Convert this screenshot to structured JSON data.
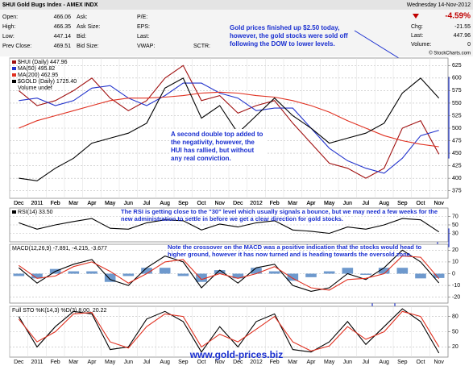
{
  "header": {
    "title": "$HUI Gold Bugs Index - AMEX INDX",
    "date": "Wednesday 14-Nov-2012",
    "change_pct": "-4.59%",
    "copyright": "© StockCharts.com",
    "rows": [
      [
        {
          "label": "Open:",
          "value": "466.06"
        },
        {
          "label": "Ask:"
        },
        {
          "label": "P/E:"
        }
      ],
      [
        {
          "label": "High:",
          "value": "466.35"
        },
        {
          "label": "Ask Size:"
        },
        {
          "label": "EPS:"
        }
      ],
      [
        {
          "label": "Low:",
          "value": "447.14"
        },
        {
          "label": "Bid:"
        },
        {
          "label": "Last:"
        }
      ],
      [
        {
          "label": "Prev Close:",
          "value": "469.51"
        },
        {
          "label": "Bid Size:"
        },
        {
          "label": "VWAP:"
        },
        {
          "label": "SCTR:"
        }
      ]
    ],
    "right": [
      {
        "label": "Chg:",
        "value": "-21.55"
      },
      {
        "label": "Last:",
        "value": "447.96"
      },
      {
        "label": "Volume:",
        "value": "0"
      }
    ],
    "website": "www.gold-prices.biz"
  },
  "chart_data": [
    {
      "type": "line",
      "categories": [
        "Dec",
        "2011",
        "Feb",
        "Mar",
        "Apr",
        "May",
        "Jun",
        "Jul",
        "Aug",
        "Sep",
        "Oct",
        "Nov",
        "Dec",
        "2012",
        "Feb",
        "Mar",
        "Apr",
        "May",
        "Jun",
        "Jul",
        "Aug",
        "Sep",
        "Oct",
        "Nov"
      ],
      "ylim": [
        360,
        640
      ],
      "yticks": [
        375,
        400,
        425,
        450,
        475,
        500,
        525,
        550,
        575,
        600,
        625
      ],
      "grid": true,
      "legend_note": "Volume undef",
      "series": [
        {
          "name": "$HUI (Daily) 447.96",
          "color": "#a01010",
          "values": [
            575,
            545,
            555,
            575,
            600,
            560,
            535,
            555,
            600,
            625,
            555,
            565,
            530,
            545,
            555,
            510,
            470,
            430,
            420,
            400,
            420,
            500,
            515,
            447.96
          ]
        },
        {
          "name": "MA(50) 495.82",
          "color": "#2233cc",
          "values": [
            555,
            560,
            545,
            555,
            580,
            585,
            560,
            545,
            565,
            590,
            590,
            570,
            560,
            535,
            540,
            540,
            500,
            460,
            435,
            420,
            410,
            440,
            485,
            495.82
          ]
        },
        {
          "name": "MA(200) 462.95",
          "color": "#e03020",
          "values": [
            500,
            515,
            525,
            535,
            545,
            555,
            560,
            560,
            562,
            565,
            570,
            572,
            570,
            565,
            562,
            555,
            545,
            532,
            515,
            500,
            485,
            475,
            468,
            462.95
          ]
        },
        {
          "name": "$GOLD (Daily) 1725.40",
          "color": "#000000",
          "values": [
            400,
            395,
            420,
            440,
            470,
            480,
            490,
            510,
            580,
            600,
            520,
            545,
            490,
            525,
            560,
            525,
            500,
            470,
            480,
            490,
            510,
            570,
            600,
            560
          ]
        }
      ],
      "annotations": [
        "Gold prices finished up $2.50 today, however, the gold stocks were sold off following the DOW to lower levels.",
        "A second double top added to the negativity, however, the HUI has rallied, but without any real conviction."
      ]
    },
    {
      "type": "line",
      "ylim": [
        10,
        90
      ],
      "yticks": [
        30,
        50,
        70
      ],
      "grid": true,
      "series": [
        {
          "name": "RSI(14) 33.50",
          "color": "#000000",
          "values": [
            55,
            40,
            50,
            58,
            65,
            42,
            40,
            55,
            62,
            60,
            38,
            52,
            45,
            55,
            60,
            38,
            35,
            30,
            45,
            40,
            50,
            65,
            62,
            33.5
          ]
        }
      ],
      "annotations": [
        "The RSI is getting close to the \"30\" level which usually signals a bounce, but we may need a few weeks for the new administration to settle in before we get a clear direction for gold stocks."
      ]
    },
    {
      "type": "line",
      "title": "MACD(12,26,9) -7.891, -4.215, -3.677",
      "ylim": [
        -25,
        25
      ],
      "yticks": [
        -20,
        -10,
        0,
        10,
        20
      ],
      "grid": true,
      "series": [
        {
          "color": "#4a7fc0",
          "kind": "bar",
          "values": [
            -2,
            -4,
            4,
            2,
            2,
            -7,
            -2,
            5,
            5,
            -2,
            -7,
            3,
            -4,
            5,
            2,
            -6,
            -3,
            2,
            5,
            -1,
            5,
            5,
            -4,
            -3.677
          ]
        },
        {
          "color": "#000000",
          "values": [
            5,
            -8,
            2,
            8,
            12,
            -5,
            -10,
            5,
            15,
            10,
            -12,
            3,
            -8,
            5,
            8,
            -10,
            -15,
            -12,
            0,
            -5,
            5,
            20,
            10,
            -7.891
          ]
        },
        {
          "color": "#e03020",
          "values": [
            7,
            -4,
            -2,
            6,
            10,
            2,
            -8,
            0,
            10,
            12,
            -5,
            0,
            -4,
            0,
            6,
            -4,
            -12,
            -14,
            -5,
            -4,
            0,
            15,
            14,
            -4.215
          ]
        }
      ],
      "annotations": [
        "Note the crossover on the MACD was a positive indication that the stocks would head to higher ground, however it has now turned and is heading towards the oversold zone."
      ]
    },
    {
      "type": "line",
      "title": "Full STO %K(14,3) %D(3) 8.00, 20.22",
      "categories": [
        "Dec",
        "2011",
        "Feb",
        "Mar",
        "Apr",
        "May",
        "Jun",
        "Jul",
        "Aug",
        "Sep",
        "Oct",
        "Nov",
        "Dec",
        "2012",
        "Feb",
        "Mar",
        "Apr",
        "May",
        "Jun",
        "Jul",
        "Aug",
        "Sep",
        "Oct",
        "Nov"
      ],
      "ylim": [
        0,
        100
      ],
      "yticks": [
        20,
        50,
        80
      ],
      "grid": true,
      "series": [
        {
          "color": "#000000",
          "values": [
            80,
            20,
            60,
            90,
            85,
            15,
            20,
            75,
            90,
            70,
            10,
            60,
            20,
            70,
            85,
            15,
            10,
            30,
            70,
            25,
            60,
            95,
            70,
            8
          ]
        },
        {
          "color": "#e03020",
          "values": [
            75,
            30,
            50,
            85,
            88,
            30,
            18,
            60,
            85,
            80,
            20,
            45,
            30,
            55,
            80,
            30,
            12,
            22,
            60,
            35,
            50,
            90,
            80,
            20.22
          ]
        }
      ]
    }
  ]
}
